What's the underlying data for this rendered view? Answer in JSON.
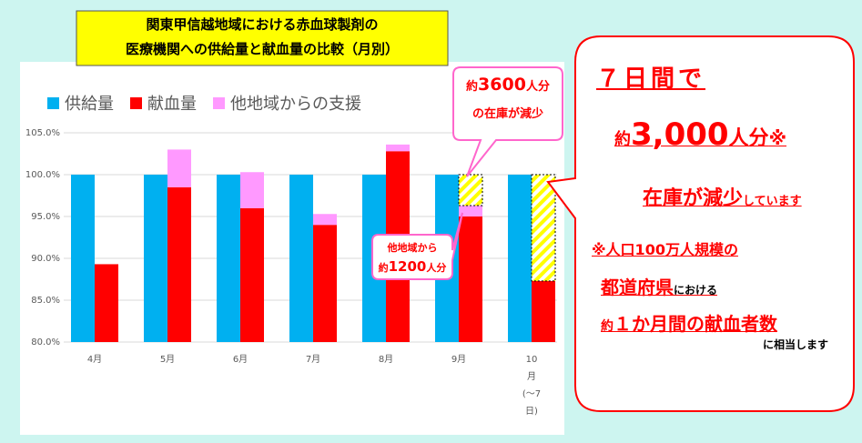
{
  "chart_data": {
    "type": "bar",
    "title": [
      "関東甲信越地域における赤血球製剤の",
      "医療機関への供給量と献血量の比較（月別）"
    ],
    "categories": [
      "4月",
      "5月",
      "6月",
      "7月",
      "8月",
      "9月",
      "10月(〜7日)"
    ],
    "series": [
      {
        "name": "供給量",
        "color": "#00b0f0",
        "values": [
          100,
          100,
          100,
          100,
          100,
          100,
          100
        ]
      },
      {
        "name": "献血量",
        "color": "#ff0000",
        "values": [
          89.3,
          98.5,
          96.0,
          94.0,
          102.8,
          95.0,
          87.3
        ]
      },
      {
        "name": "他地域からの支援",
        "color": "#ff99ff",
        "values": [
          null,
          4.5,
          4.3,
          1.3,
          0.8,
          1.3,
          null
        ]
      }
    ],
    "shortfall": {
      "color": "#ffff00",
      "values": [
        null,
        null,
        null,
        null,
        null,
        3.7,
        12.7
      ]
    },
    "ylim": [
      80,
      105
    ],
    "yticks": [
      {
        "value": 80,
        "label": "80.0%"
      },
      {
        "value": 85,
        "label": "85.0%"
      },
      {
        "value": 90,
        "label": "90.0%"
      },
      {
        "value": 95,
        "label": "95.0%"
      },
      {
        "value": 100,
        "label": "100.0%"
      },
      {
        "value": 105,
        "label": "105.0%"
      }
    ],
    "grid": true
  },
  "callouts": {
    "stock": [
      "約",
      "3600",
      "人分",
      "の在庫が減少"
    ],
    "support": [
      "他地域から",
      "約",
      "1200",
      "人分"
    ],
    "summary": [
      [
        "７日間で"
      ],
      [
        "約",
        "3,000",
        "人分",
        "※"
      ],
      [
        "在庫が減少",
        "しています"
      ],
      [
        "※人口100万人規模の"
      ],
      [
        "都道府県",
        "における"
      ],
      [
        "約",
        "１か月間の献血者数"
      ],
      [
        "に相当します"
      ]
    ]
  }
}
